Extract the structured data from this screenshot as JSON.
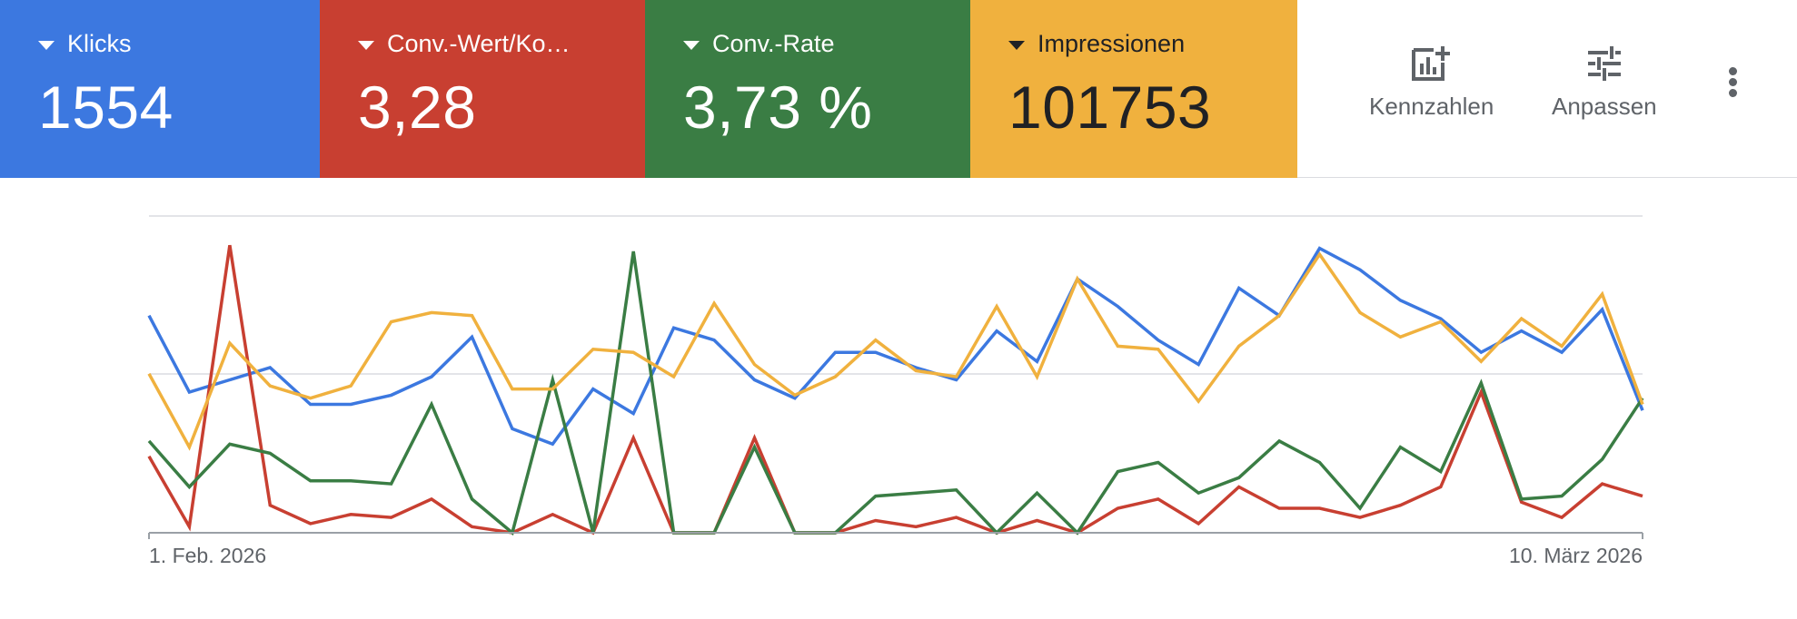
{
  "metrics": [
    {
      "label": "Klicks",
      "value": "1554",
      "bg": "#3c78e0",
      "fg": "#ffffff"
    },
    {
      "label": "Conv.-Wert/Ko…",
      "value": "3,28",
      "bg": "#c83f31",
      "fg": "#ffffff"
    },
    {
      "label": "Conv.-Rate",
      "value": "3,73 %",
      "bg": "#3a7d44",
      "fg": "#ffffff"
    },
    {
      "label": "Impressionen",
      "value": "101753",
      "bg": "#f0b13e",
      "fg": "#202124"
    }
  ],
  "actions": {
    "metrics_label": "Kennzahlen",
    "customize_label": "Anpassen",
    "metrics_icon": "add-chart-icon",
    "customize_icon": "tune-icon",
    "more_icon": "more-vert-icon"
  },
  "chart_data": {
    "type": "line",
    "grid": true,
    "legend": "none",
    "x_first_label": "1. Feb. 2026",
    "x_last_label": "10. März 2026",
    "x": [
      1,
      2,
      3,
      4,
      5,
      6,
      7,
      8,
      9,
      10,
      11,
      12,
      13,
      14,
      15,
      16,
      17,
      18,
      19,
      20,
      21,
      22,
      23,
      24,
      25,
      26,
      27,
      28,
      29,
      30,
      31,
      32,
      33,
      34,
      35,
      36,
      37,
      38
    ],
    "series": [
      {
        "color": "#3c78e0",
        "values": [
          71,
          46,
          50,
          54,
          42,
          42,
          45,
          51,
          64,
          34,
          29,
          47,
          39,
          67,
          63,
          50,
          44,
          59,
          59,
          54,
          50,
          66,
          56,
          83,
          74,
          63,
          55,
          80,
          71,
          93,
          86,
          76,
          70,
          59,
          66,
          59,
          73,
          40
        ]
      },
      {
        "color": "#c83f31",
        "values": [
          25,
          2,
          94,
          9,
          3,
          6,
          5,
          11,
          2,
          0,
          6,
          0,
          31,
          0,
          0,
          31,
          0,
          0,
          4,
          2,
          5,
          0,
          4,
          0,
          8,
          11,
          3,
          15,
          8,
          8,
          5,
          9,
          15,
          46,
          10,
          5,
          16,
          12
        ]
      },
      {
        "color": "#3a7d44",
        "values": [
          30,
          15,
          29,
          26,
          17,
          17,
          16,
          42,
          11,
          0,
          50,
          0,
          92,
          0,
          0,
          28,
          0,
          0,
          12,
          13,
          14,
          0,
          13,
          0,
          20,
          23,
          13,
          18,
          30,
          23,
          8,
          28,
          20,
          49,
          11,
          12,
          24,
          44
        ]
      },
      {
        "color": "#f0b13e",
        "values": [
          52,
          28,
          62,
          48,
          44,
          48,
          69,
          72,
          71,
          47,
          47,
          60,
          59,
          51,
          75,
          55,
          45,
          51,
          63,
          53,
          51,
          74,
          51,
          83,
          61,
          60,
          43,
          61,
          71,
          91,
          72,
          64,
          69,
          56,
          70,
          61,
          78,
          42
        ]
      }
    ]
  }
}
